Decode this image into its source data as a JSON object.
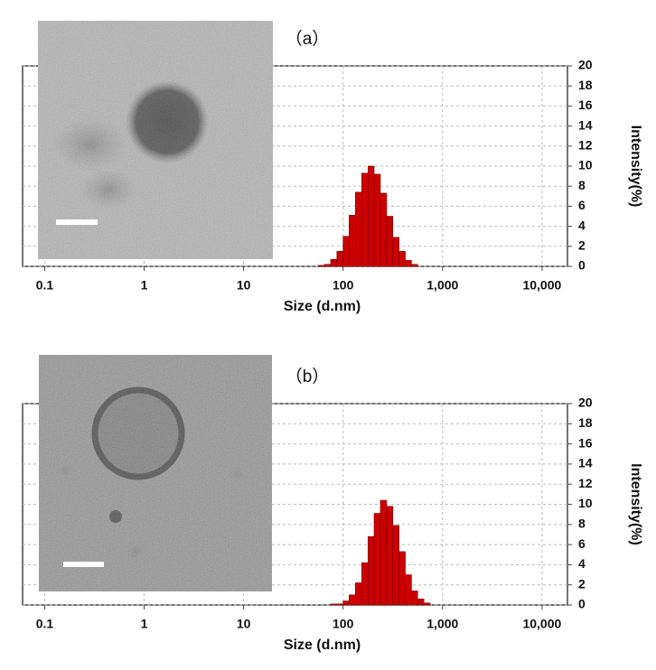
{
  "chart_data": [
    {
      "type": "histogram",
      "title": "（a）",
      "xlabel": "Size (d.nm)",
      "ylabel": "Intensity(%)",
      "xscale": "log",
      "grid": true,
      "color": "#cc0000",
      "xlim": [
        0.06,
        18000
      ],
      "ylim": [
        0,
        20
      ],
      "xticks": [
        0.1,
        1,
        10,
        100,
        {
          "value": 1000,
          "label": "1,000"
        },
        {
          "value": 10000,
          "label": "10,000"
        }
      ],
      "yticks": [
        0,
        2,
        4,
        6,
        8,
        10,
        12,
        14,
        16,
        18,
        20
      ],
      "bins": [
        1,
        56.2,
        64.9,
        75.0,
        86.6,
        100,
        115,
        133,
        154,
        178,
        205,
        237,
        274,
        316,
        365,
        422,
        487,
        562,
        10000
      ],
      "values": [
        0,
        0.1,
        0.2,
        0.7,
        1.5,
        3.0,
        5.1,
        7.4,
        9.3,
        10.0,
        9.2,
        7.3,
        5.0,
        2.9,
        1.5,
        0.6,
        0.2,
        0
      ]
    },
    {
      "type": "histogram",
      "title": "（b）",
      "xlabel": "Size (d.nm)",
      "ylabel": "Intensity(%)",
      "xscale": "log",
      "grid": true,
      "color": "#cc0000",
      "xlim": [
        0.06,
        18000
      ],
      "ylim": [
        0,
        20
      ],
      "xticks": [
        0.1,
        1,
        10,
        100,
        {
          "value": 1000,
          "label": "1,000"
        },
        {
          "value": 10000,
          "label": "10,000"
        }
      ],
      "yticks": [
        0,
        2,
        4,
        6,
        8,
        10,
        12,
        14,
        16,
        18,
        20
      ],
      "bins": [
        1,
        75.0,
        86.6,
        100,
        115,
        133,
        154,
        178,
        205,
        237,
        274,
        316,
        365,
        422,
        487,
        562,
        649,
        750,
        10000
      ],
      "values": [
        0,
        0.1,
        0.1,
        0.4,
        1.0,
        2.2,
        4.2,
        6.8,
        9.1,
        10.4,
        9.8,
        7.9,
        5.3,
        3.0,
        1.4,
        0.6,
        0.2,
        0
      ]
    }
  ]
}
